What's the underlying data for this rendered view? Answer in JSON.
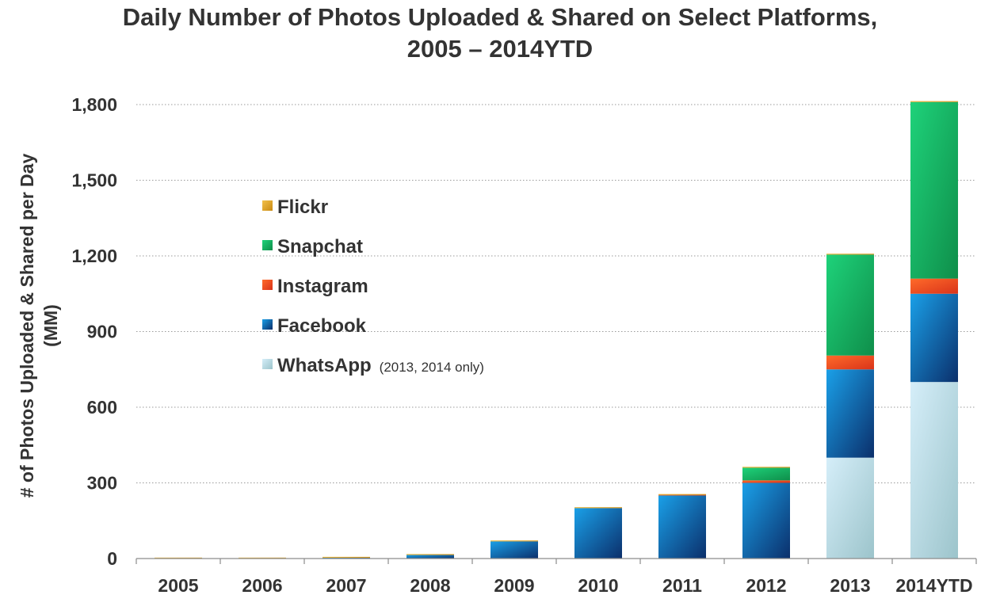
{
  "chart_data": {
    "type": "bar",
    "stacked": true,
    "title_lines": [
      "Daily Number of Photos Uploaded & Shared on Select Platforms,",
      "2005 – 2014YTD"
    ],
    "ylabel_lines": [
      "# of Photos Uploaded & Shared per Day",
      "(MM)"
    ],
    "xlabel": "",
    "ylim": [
      0,
      1800
    ],
    "yticks": [
      0,
      300,
      600,
      900,
      1200,
      1500,
      1800
    ],
    "ytick_labels": [
      "0",
      "300",
      "600",
      "900",
      "1,200",
      "1,500",
      "1,800"
    ],
    "grid": true,
    "categories": [
      "2005",
      "2006",
      "2007",
      "2008",
      "2009",
      "2010",
      "2011",
      "2012",
      "2013",
      "2014YTD"
    ],
    "series": [
      {
        "name": "WhatsApp",
        "key": "whatsapp",
        "values": [
          0,
          0,
          0,
          0,
          0,
          0,
          0,
          0,
          400,
          700
        ]
      },
      {
        "name": "Facebook",
        "key": "facebook",
        "values": [
          0,
          0,
          3,
          14,
          68,
          200,
          250,
          300,
          350,
          350
        ]
      },
      {
        "name": "Instagram",
        "key": "instagram",
        "values": [
          0,
          0,
          0,
          0,
          0,
          0,
          2,
          10,
          55,
          60
        ]
      },
      {
        "name": "Snapchat",
        "key": "snapchat",
        "values": [
          0,
          0,
          0,
          0,
          0,
          0,
          0,
          50,
          400,
          700
        ]
      },
      {
        "name": "Flickr",
        "key": "flickr",
        "values": [
          1,
          3,
          2,
          2,
          2,
          2,
          2,
          2,
          2,
          2
        ]
      }
    ],
    "legend": {
      "placement": "upper-left",
      "order": [
        "flickr",
        "snapchat",
        "instagram",
        "facebook",
        "whatsapp"
      ],
      "labels": {
        "flickr": "Flickr",
        "snapchat": "Snapchat",
        "instagram": "Instagram",
        "facebook": "Facebook",
        "whatsapp": "WhatsApp"
      },
      "notes": {
        "whatsapp": "(2013, 2014 only)"
      }
    },
    "colors": {
      "whatsapp": [
        "#d5eef9",
        "#9cc4cb"
      ],
      "facebook": [
        "#1aa0e8",
        "#0b2f6b"
      ],
      "instagram": [
        "#ff6a2a",
        "#d9341a"
      ],
      "snapchat": [
        "#1ed27a",
        "#0f8e4a"
      ],
      "flickr": [
        "#f2c14a",
        "#c98a14"
      ]
    }
  }
}
